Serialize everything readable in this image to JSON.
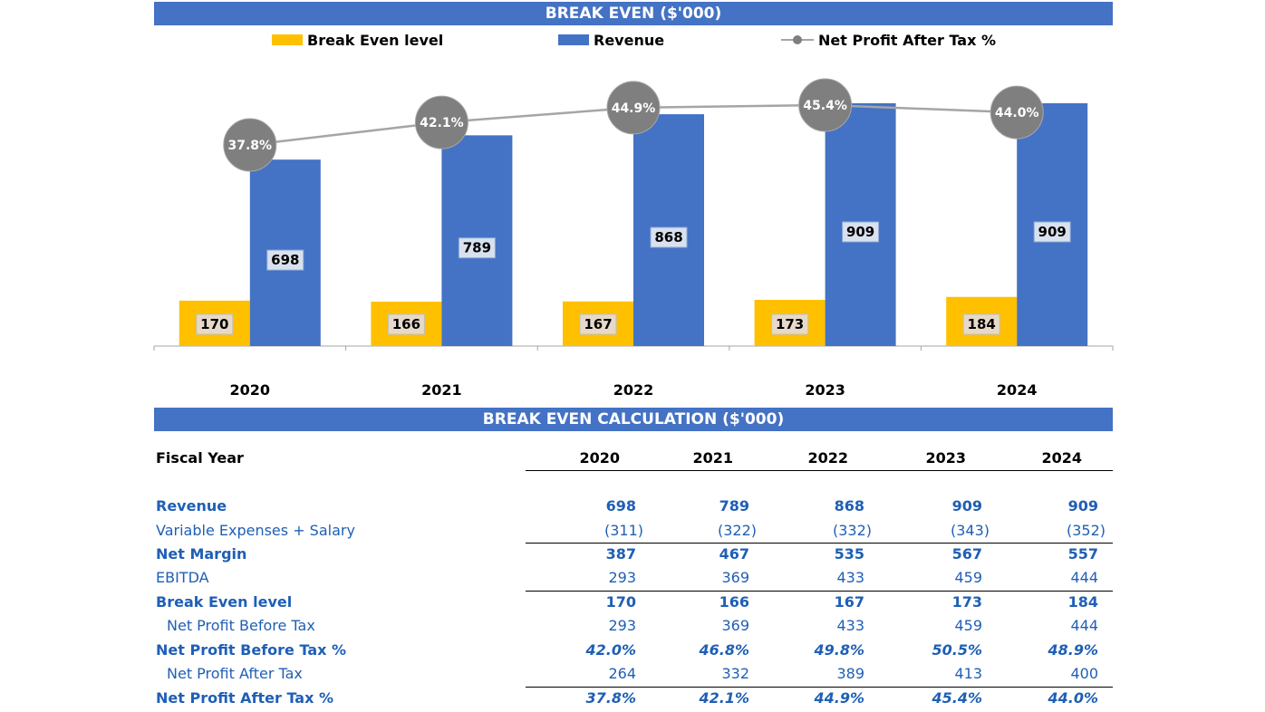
{
  "colors": {
    "banner": "#4472c4",
    "revenue": "#4472c4",
    "break_even": "#ffc000",
    "profit_line": "#a5a5a5",
    "profit_marker": "#7f7f7f",
    "text_blue": "#1f5fb5"
  },
  "chart_banner": "BREAK EVEN ($'000)",
  "table_banner": "BREAK EVEN CALCULATION ($'000)",
  "chart_data": {
    "type": "bar",
    "title": "BREAK EVEN ($'000)",
    "categories": [
      "2020",
      "2021",
      "2022",
      "2023",
      "2024"
    ],
    "series": [
      {
        "name": "Break Even level",
        "type": "bar",
        "values": [
          170,
          166,
          167,
          173,
          184
        ]
      },
      {
        "name": "Revenue",
        "type": "bar",
        "values": [
          698,
          789,
          868,
          909,
          909
        ]
      },
      {
        "name": "Net Profit After Tax %",
        "type": "line",
        "values": [
          37.8,
          42.1,
          44.9,
          45.4,
          44.0
        ],
        "labels": [
          "37.8%",
          "42.1%",
          "44.9%",
          "45.4%",
          "44.0%"
        ]
      }
    ],
    "legend": [
      "Break Even level",
      "Revenue",
      "Net Profit After Tax %"
    ],
    "legend_position": "top",
    "ylim": [
      0,
      909
    ]
  },
  "table": {
    "header_label": "Fiscal Year",
    "years": [
      "2020",
      "2021",
      "2022",
      "2023",
      "2024"
    ],
    "rows": [
      {
        "label": "Revenue",
        "values": [
          "698",
          "789",
          "868",
          "909",
          "909"
        ]
      },
      {
        "label": "Variable Expenses + Salary",
        "values": [
          "(311)",
          "(322)",
          "(332)",
          "(343)",
          "(352)"
        ]
      },
      {
        "label": "Net Margin",
        "values": [
          "387",
          "467",
          "535",
          "567",
          "557"
        ]
      },
      {
        "label": "EBITDA",
        "values": [
          "293",
          "369",
          "433",
          "459",
          "444"
        ]
      },
      {
        "label": "Break Even level",
        "values": [
          "170",
          "166",
          "167",
          "173",
          "184"
        ]
      },
      {
        "label": "Net Profit Before Tax",
        "values": [
          "293",
          "369",
          "433",
          "459",
          "444"
        ]
      },
      {
        "label": "Net Profit Before Tax %",
        "values": [
          "42.0%",
          "46.8%",
          "49.8%",
          "50.5%",
          "48.9%"
        ]
      },
      {
        "label": "Net Profit After Tax",
        "values": [
          "264",
          "332",
          "389",
          "413",
          "400"
        ]
      },
      {
        "label": "Net Profit After Tax %",
        "values": [
          "37.8%",
          "42.1%",
          "44.9%",
          "45.4%",
          "44.0%"
        ]
      }
    ]
  }
}
